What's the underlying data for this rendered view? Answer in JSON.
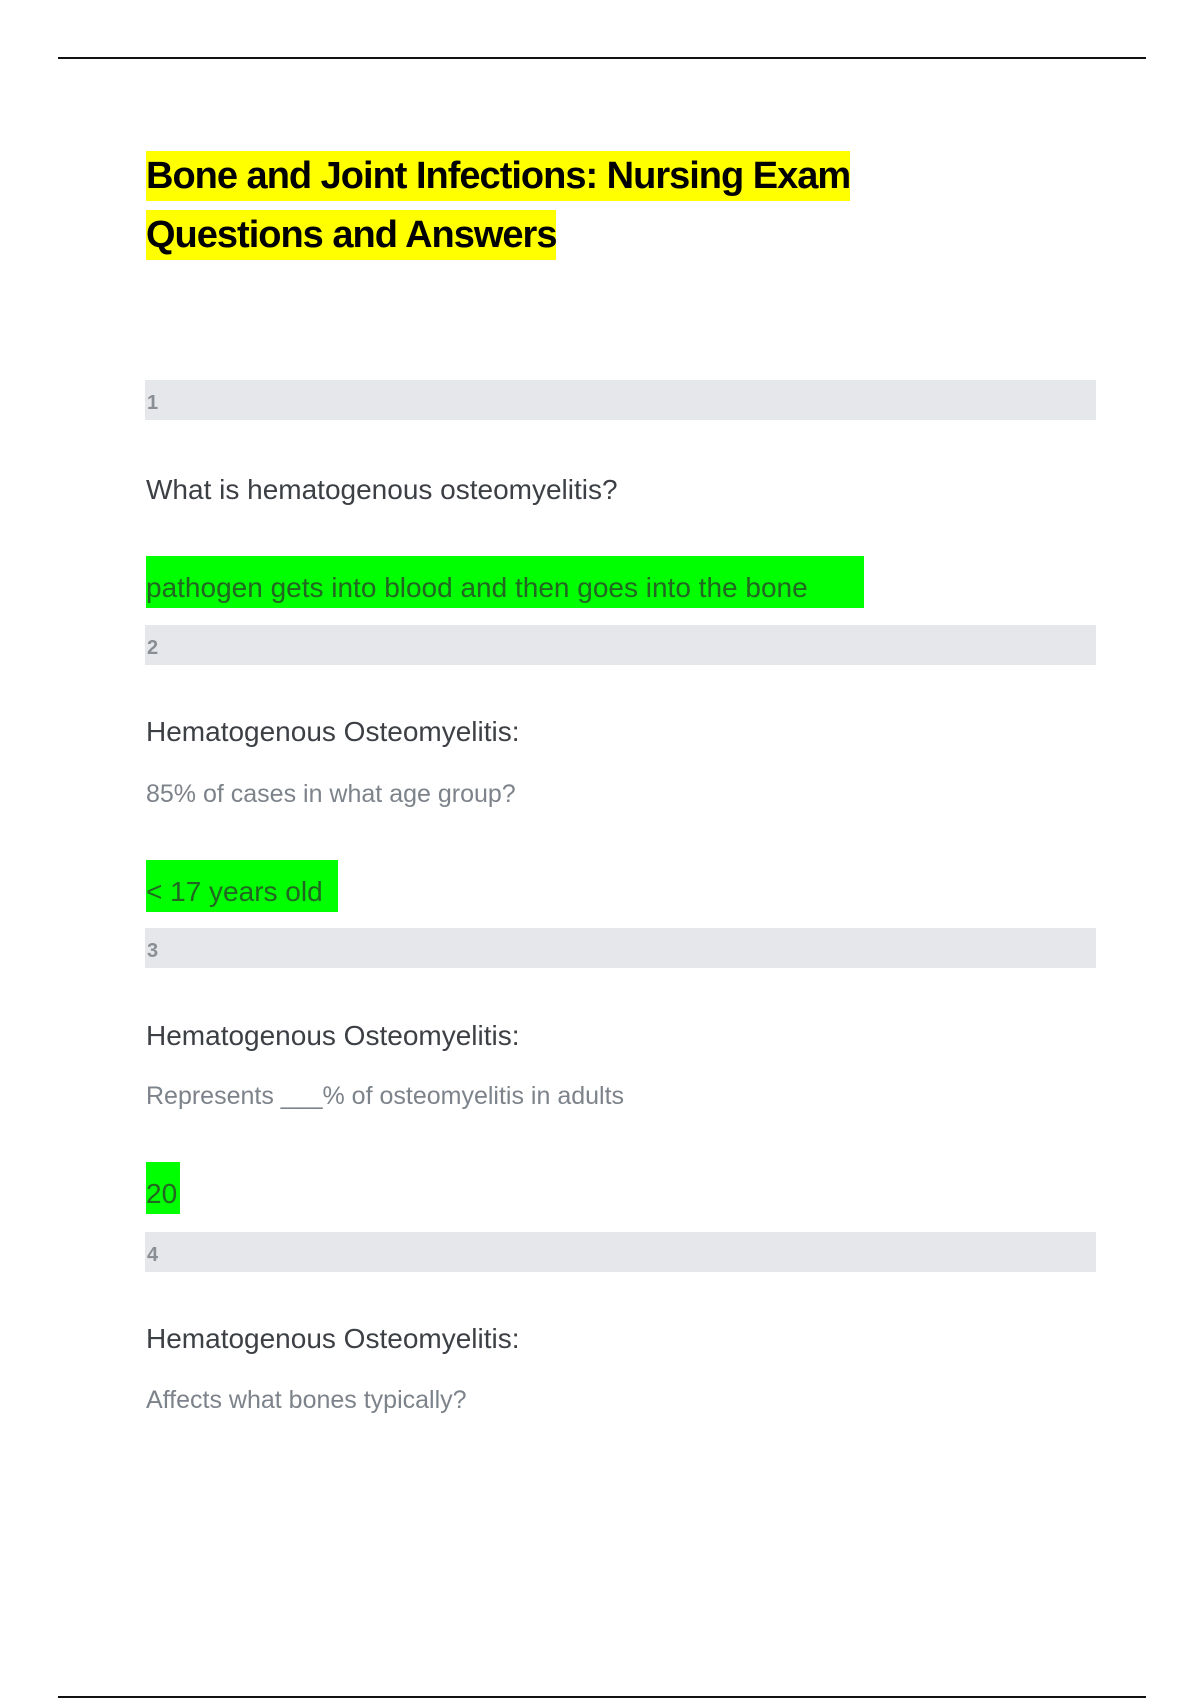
{
  "title_lines": [
    "Bone and Joint Infections: Nursing Exam",
    "Questions and Answers"
  ],
  "cards": [
    {
      "number": "1",
      "question": "What is hematogenous osteomyelitis?",
      "answer": "pathogen gets into blood and then goes into the bone"
    },
    {
      "number": "2",
      "question": "Hematogenous Osteomyelitis:",
      "subquestion": "85% of cases in what age group?",
      "answer": "< 17 years old"
    },
    {
      "number": "3",
      "question": "Hematogenous Osteomyelitis:",
      "subquestion": "Represents ___% of osteomyelitis in adults",
      "answer": "20"
    },
    {
      "number": "4",
      "question": "Hematogenous Osteomyelitis:",
      "subquestion": "Affects what bones typically?"
    }
  ],
  "colors": {
    "title_highlight": "#ffff00",
    "answer_highlight": "#00ff00",
    "number_bar": "#e6e7ea"
  }
}
